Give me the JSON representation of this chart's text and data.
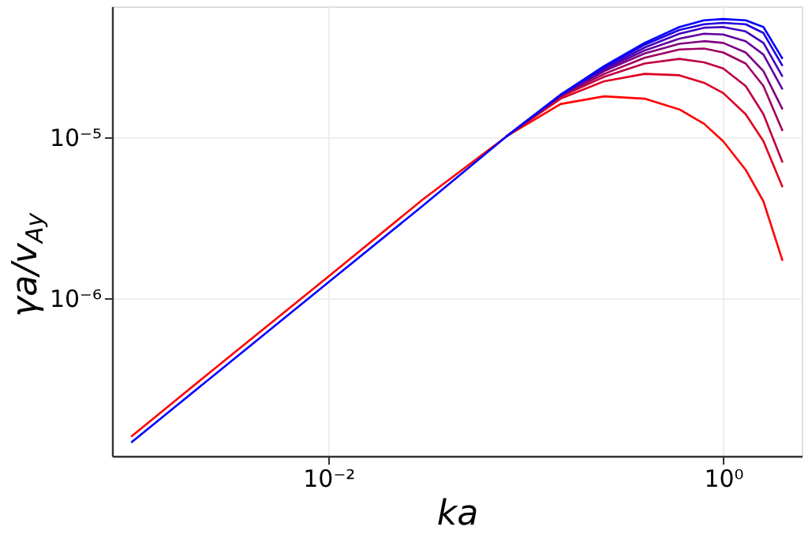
{
  "chart_data": {
    "type": "line",
    "xlabel": "ka",
    "ylabel": "γa/v$_{Ay}$",
    "log": "xy",
    "grid": true,
    "legend": false,
    "line_style": "solid",
    "marker": "none",
    "x": [
      0.001,
      0.003,
      0.01,
      0.03,
      0.08,
      0.15,
      0.25,
      0.4,
      0.6,
      0.8,
      1.0,
      1.3,
      1.6,
      2.0
    ],
    "xlim": [
      0.0008,
      2.5
    ],
    "ylim": [
      1.03e-07,
      6.6e-05
    ],
    "xticks": [
      {
        "value": 0.01,
        "label": "10⁻²"
      },
      {
        "value": 1,
        "label": "10⁰"
      }
    ],
    "yticks": [
      {
        "value": 1e-06,
        "label": "10⁻⁶"
      },
      {
        "value": 1e-05,
        "label": "10⁻⁵"
      }
    ],
    "series": [
      {
        "color": "#ff0000",
        "values": [
          1.36e-07,
          4.1e-07,
          1.36e-06,
          4.1e-06,
          1.02e-05,
          1.62e-05,
          1.81e-05,
          1.75e-05,
          1.5e-05,
          1.22e-05,
          9.5e-06,
          6.3e-06,
          4e-06,
          1.7e-06
        ]
      },
      {
        "color": "#df0020",
        "x": [
          0.08,
          0.15,
          0.25,
          0.4,
          0.6,
          0.8,
          1.0,
          1.3,
          1.6,
          2.0
        ],
        "values": [
          1.02e-05,
          1.75e-05,
          2.25e-05,
          2.5e-05,
          2.45e-05,
          2.2e-05,
          1.9e-05,
          1.4e-05,
          9.5e-06,
          4.9e-06
        ]
      },
      {
        "color": "#bf0040",
        "x": [
          0.08,
          0.15,
          0.25,
          0.4,
          0.6,
          0.8,
          1.0,
          1.3,
          1.6,
          2.0
        ],
        "values": [
          1.02e-05,
          1.8e-05,
          2.4e-05,
          2.9e-05,
          3.1e-05,
          2.95e-05,
          2.7e-05,
          2.1e-05,
          1.4e-05,
          7e-06
        ]
      },
      {
        "color": "#9f0060",
        "x": [
          0.08,
          0.15,
          0.25,
          0.4,
          0.6,
          0.8,
          1.0,
          1.3,
          1.6,
          2.0
        ],
        "values": [
          1.02e-05,
          1.82e-05,
          2.5e-05,
          3.15e-05,
          3.55e-05,
          3.6e-05,
          3.4e-05,
          2.9e-05,
          2.1e-05,
          1.1e-05
        ]
      },
      {
        "color": "#7f0080",
        "x": [
          0.08,
          0.15,
          0.25,
          0.4,
          0.6,
          0.8,
          1.0,
          1.3,
          1.6,
          2.0
        ],
        "values": [
          1.02e-05,
          1.83e-05,
          2.6e-05,
          3.35e-05,
          3.85e-05,
          4e-05,
          3.9e-05,
          3.4e-05,
          2.6e-05,
          1.5e-05
        ]
      },
      {
        "color": "#60009f",
        "x": [
          0.08,
          0.15,
          0.25,
          0.4,
          0.6,
          0.8,
          1.0,
          1.3,
          1.6,
          2.0
        ],
        "values": [
          1.02e-05,
          1.84e-05,
          2.65e-05,
          3.5e-05,
          4.15e-05,
          4.45e-05,
          4.4e-05,
          4e-05,
          3.3e-05,
          2e-05
        ]
      },
      {
        "color": "#4000bf",
        "x": [
          0.08,
          0.15,
          0.25,
          0.4,
          0.6,
          0.8,
          1.0,
          1.3,
          1.6,
          2.0
        ],
        "values": [
          1.02e-05,
          1.85e-05,
          2.7e-05,
          3.65e-05,
          4.45e-05,
          4.85e-05,
          4.9e-05,
          4.6e-05,
          3.9e-05,
          2.4e-05
        ]
      },
      {
        "color": "#2000df",
        "x": [
          0.08,
          0.15,
          0.25,
          0.4,
          0.6,
          0.8,
          1.0,
          1.3,
          1.6,
          2.0
        ],
        "values": [
          1.02e-05,
          1.85e-05,
          2.75e-05,
          3.8e-05,
          4.7e-05,
          5.1e-05,
          5.2e-05,
          5.1e-05,
          4.5e-05,
          2.8e-05
        ]
      },
      {
        "color": "#0000ff",
        "values": [
          1.25e-07,
          3.75e-07,
          1.25e-06,
          3.75e-06,
          1.02e-05,
          1.85e-05,
          2.8e-05,
          3.9e-05,
          4.9e-05,
          5.4e-05,
          5.5e-05,
          5.4e-05,
          4.9e-05,
          3.1e-05
        ]
      }
    ]
  }
}
